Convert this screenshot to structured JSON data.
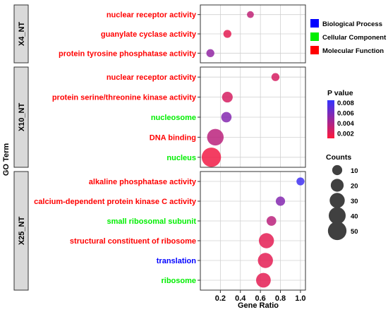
{
  "chart_data": {
    "type": "scatter",
    "xlabel": "Gene Ratio",
    "ylabel": "GO Term",
    "xlim": [
      0,
      1.05
    ],
    "x_ticks": [
      "0.2",
      "0.4",
      "0.6",
      "0.8",
      "1.0"
    ],
    "category_legend": [
      {
        "name": "Biological Process",
        "color": "#0000ff"
      },
      {
        "name": "Cellular Component",
        "color": "#00ee00"
      },
      {
        "name": "Molecular Function",
        "color": "#ff0000"
      }
    ],
    "pvalue_legend": {
      "title": "P value",
      "ticks": [
        "0.008",
        "0.006",
        "0.004",
        "0.002"
      ],
      "low_color": "#ff1a3a",
      "high_color": "#3333ff"
    },
    "size_legend": {
      "title": "Counts",
      "values": [
        "10",
        "20",
        "30",
        "40",
        "50"
      ]
    },
    "panels": [
      {
        "strip": "X4_NT",
        "terms": [
          {
            "label": "nuclear receptor activity",
            "category": "Molecular Function",
            "x": 0.5,
            "count": 3,
            "p": 0.0033
          },
          {
            "label": "guanylate cyclase activity",
            "category": "Molecular Function",
            "x": 0.27,
            "count": 5,
            "p": 0.002
          },
          {
            "label": "protein tyrosine phosphatase activity",
            "category": "Molecular Function",
            "x": 0.1,
            "count": 5,
            "p": 0.005
          }
        ]
      },
      {
        "strip": "X10_NT",
        "terms": [
          {
            "label": "nuclear receptor activity",
            "category": "Molecular Function",
            "x": 0.75,
            "count": 5,
            "p": 0.0025
          },
          {
            "label": "protein serine/threonine kinase activity",
            "category": "Molecular Function",
            "x": 0.27,
            "count": 12,
            "p": 0.0025
          },
          {
            "label": "nucleosome",
            "category": "Cellular Component",
            "x": 0.26,
            "count": 11,
            "p": 0.0055
          },
          {
            "label": "DNA binding",
            "category": "Molecular Function",
            "x": 0.15,
            "count": 38,
            "p": 0.0035
          },
          {
            "label": "nucleus",
            "category": "Cellular Component",
            "x": 0.11,
            "count": 55,
            "p": 0.0015
          }
        ]
      },
      {
        "strip": "X25_NT",
        "terms": [
          {
            "label": "alkaline phosphatase activity",
            "category": "Molecular Function",
            "x": 1.0,
            "count": 5,
            "p": 0.008
          },
          {
            "label": "calcium-dependent  protein kinase C activity",
            "category": "Molecular Function",
            "x": 0.8,
            "count": 8,
            "p": 0.0055
          },
          {
            "label": "small ribosomal subunit",
            "category": "Cellular Component",
            "x": 0.71,
            "count": 9,
            "p": 0.0035
          },
          {
            "label": "structural constituent of ribosome",
            "category": "Molecular Function",
            "x": 0.66,
            "count": 30,
            "p": 0.002
          },
          {
            "label": "translation",
            "category": "Biological Process",
            "x": 0.65,
            "count": 30,
            "p": 0.002
          },
          {
            "label": "ribosome",
            "category": "Cellular Component",
            "x": 0.63,
            "count": 28,
            "p": 0.002
          }
        ]
      }
    ]
  }
}
